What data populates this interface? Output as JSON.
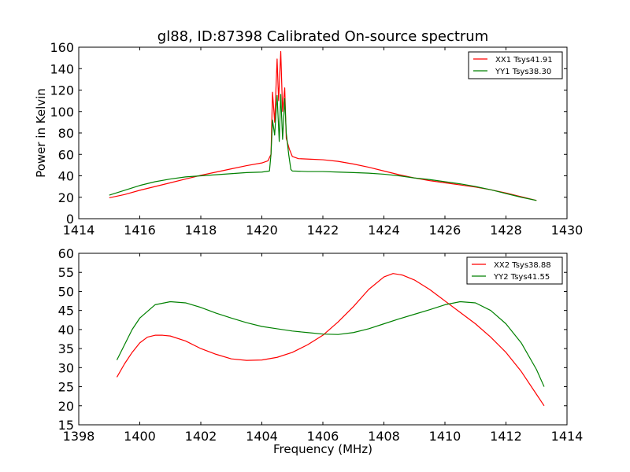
{
  "chart_data": [
    {
      "type": "line",
      "title": "gl88, ID:87398 Calibrated On-source spectrum",
      "xlabel": "",
      "ylabel": "Power in Kelvin",
      "xlim": [
        1414,
        1430
      ],
      "ylim": [
        0,
        160
      ],
      "xticks": [
        1414,
        1416,
        1418,
        1420,
        1422,
        1424,
        1426,
        1428,
        1430
      ],
      "yticks": [
        0,
        20,
        40,
        60,
        80,
        100,
        120,
        140,
        160
      ],
      "grid": false,
      "legend_position": "top-right",
      "series": [
        {
          "name": "XX1 Tsys41.91",
          "color": "#ff0000",
          "points": [
            [
              1415.0,
              19.5
            ],
            [
              1415.5,
              22.5
            ],
            [
              1416.0,
              26.5
            ],
            [
              1416.5,
              30.0
            ],
            [
              1417.0,
              33.5
            ],
            [
              1417.5,
              37.0
            ],
            [
              1418.0,
              40.5
            ],
            [
              1418.5,
              43.5
            ],
            [
              1419.0,
              46.5
            ],
            [
              1419.5,
              49.5
            ],
            [
              1420.0,
              52.0
            ],
            [
              1420.2,
              54.0
            ],
            [
              1420.3,
              60.0
            ],
            [
              1420.35,
              118.0
            ],
            [
              1420.42,
              90.0
            ],
            [
              1420.5,
              149.0
            ],
            [
              1420.55,
              110.0
            ],
            [
              1420.62,
              156.0
            ],
            [
              1420.68,
              100.0
            ],
            [
              1420.75,
              122.0
            ],
            [
              1420.8,
              75.0
            ],
            [
              1420.9,
              65.0
            ],
            [
              1421.0,
              58.0
            ],
            [
              1421.2,
              56.0
            ],
            [
              1421.6,
              55.5
            ],
            [
              1422.0,
              55.0
            ],
            [
              1422.5,
              53.5
            ],
            [
              1423.0,
              51.0
            ],
            [
              1423.5,
              48.0
            ],
            [
              1424.0,
              44.5
            ],
            [
              1424.5,
              41.0
            ],
            [
              1425.0,
              38.0
            ],
            [
              1425.5,
              35.5
            ],
            [
              1426.0,
              33.5
            ],
            [
              1426.5,
              31.5
            ],
            [
              1427.0,
              29.5
            ],
            [
              1427.5,
              27.0
            ],
            [
              1428.0,
              24.0
            ],
            [
              1428.5,
              20.5
            ],
            [
              1429.0,
              17.0
            ]
          ]
        },
        {
          "name": "YY1 Tsys38.30",
          "color": "#008000",
          "points": [
            [
              1415.0,
              22.0
            ],
            [
              1415.5,
              26.5
            ],
            [
              1416.0,
              31.0
            ],
            [
              1416.5,
              34.5
            ],
            [
              1417.0,
              37.0
            ],
            [
              1417.5,
              39.0
            ],
            [
              1418.0,
              40.0
            ],
            [
              1418.5,
              41.0
            ],
            [
              1419.0,
              42.0
            ],
            [
              1419.5,
              43.0
            ],
            [
              1420.0,
              43.5
            ],
            [
              1420.25,
              44.5
            ],
            [
              1420.3,
              60.0
            ],
            [
              1420.35,
              92.0
            ],
            [
              1420.42,
              78.0
            ],
            [
              1420.5,
              115.0
            ],
            [
              1420.57,
              72.0
            ],
            [
              1420.62,
              116.0
            ],
            [
              1420.68,
              74.0
            ],
            [
              1420.75,
              112.0
            ],
            [
              1420.8,
              80.0
            ],
            [
              1420.88,
              60.0
            ],
            [
              1420.95,
              46.0
            ],
            [
              1421.0,
              44.5
            ],
            [
              1421.5,
              44.0
            ],
            [
              1422.0,
              44.0
            ],
            [
              1422.5,
              43.5
            ],
            [
              1423.0,
              43.0
            ],
            [
              1423.5,
              42.5
            ],
            [
              1424.0,
              41.5
            ],
            [
              1424.5,
              40.0
            ],
            [
              1425.0,
              38.0
            ],
            [
              1425.5,
              36.5
            ],
            [
              1426.0,
              34.5
            ],
            [
              1426.5,
              32.5
            ],
            [
              1427.0,
              30.0
            ],
            [
              1427.5,
              27.0
            ],
            [
              1428.0,
              23.5
            ],
            [
              1428.5,
              20.0
            ],
            [
              1429.0,
              17.0
            ]
          ]
        }
      ]
    },
    {
      "type": "line",
      "title": "",
      "xlabel": "Frequency (MHz)",
      "ylabel": "",
      "xlim": [
        1398,
        1414
      ],
      "ylim": [
        15,
        60
      ],
      "xticks": [
        1398,
        1400,
        1402,
        1404,
        1406,
        1408,
        1410,
        1412,
        1414
      ],
      "yticks": [
        15,
        20,
        25,
        30,
        35,
        40,
        45,
        50,
        55,
        60
      ],
      "grid": false,
      "legend_position": "top-right",
      "series": [
        {
          "name": "XX2 Tsys38.88",
          "color": "#ff0000",
          "points": [
            [
              1399.25,
              27.5
            ],
            [
              1399.5,
              31.0
            ],
            [
              1399.75,
              34.0
            ],
            [
              1400.0,
              36.5
            ],
            [
              1400.25,
              38.0
            ],
            [
              1400.5,
              38.5
            ],
            [
              1400.75,
              38.5
            ],
            [
              1401.0,
              38.3
            ],
            [
              1401.5,
              37.0
            ],
            [
              1402.0,
              35.0
            ],
            [
              1402.5,
              33.5
            ],
            [
              1403.0,
              32.3
            ],
            [
              1403.5,
              31.9
            ],
            [
              1404.0,
              32.0
            ],
            [
              1404.5,
              32.7
            ],
            [
              1405.0,
              34.0
            ],
            [
              1405.5,
              36.0
            ],
            [
              1406.0,
              38.5
            ],
            [
              1406.5,
              42.0
            ],
            [
              1407.0,
              46.0
            ],
            [
              1407.5,
              50.5
            ],
            [
              1408.0,
              53.8
            ],
            [
              1408.3,
              54.7
            ],
            [
              1408.6,
              54.3
            ],
            [
              1409.0,
              53.0
            ],
            [
              1409.5,
              50.5
            ],
            [
              1410.0,
              47.5
            ],
            [
              1410.5,
              44.5
            ],
            [
              1411.0,
              41.5
            ],
            [
              1411.5,
              38.0
            ],
            [
              1412.0,
              34.0
            ],
            [
              1412.5,
              29.0
            ],
            [
              1413.0,
              23.0
            ],
            [
              1413.25,
              20.0
            ]
          ]
        },
        {
          "name": "YY2 Tsys41.55",
          "color": "#008000",
          "points": [
            [
              1399.25,
              32.0
            ],
            [
              1399.5,
              36.0
            ],
            [
              1399.75,
              40.0
            ],
            [
              1400.0,
              43.0
            ],
            [
              1400.5,
              46.5
            ],
            [
              1401.0,
              47.3
            ],
            [
              1401.5,
              47.0
            ],
            [
              1402.0,
              45.8
            ],
            [
              1402.5,
              44.3
            ],
            [
              1403.0,
              43.0
            ],
            [
              1403.5,
              41.8
            ],
            [
              1404.0,
              40.8
            ],
            [
              1404.5,
              40.2
            ],
            [
              1405.0,
              39.6
            ],
            [
              1405.5,
              39.2
            ],
            [
              1406.0,
              38.8
            ],
            [
              1406.5,
              38.7
            ],
            [
              1407.0,
              39.2
            ],
            [
              1407.5,
              40.2
            ],
            [
              1408.0,
              41.5
            ],
            [
              1408.5,
              42.8
            ],
            [
              1409.0,
              44.0
            ],
            [
              1409.5,
              45.2
            ],
            [
              1410.0,
              46.5
            ],
            [
              1410.5,
              47.3
            ],
            [
              1411.0,
              47.0
            ],
            [
              1411.5,
              45.0
            ],
            [
              1412.0,
              41.5
            ],
            [
              1412.5,
              36.5
            ],
            [
              1413.0,
              29.5
            ],
            [
              1413.25,
              25.0
            ]
          ]
        }
      ]
    }
  ]
}
